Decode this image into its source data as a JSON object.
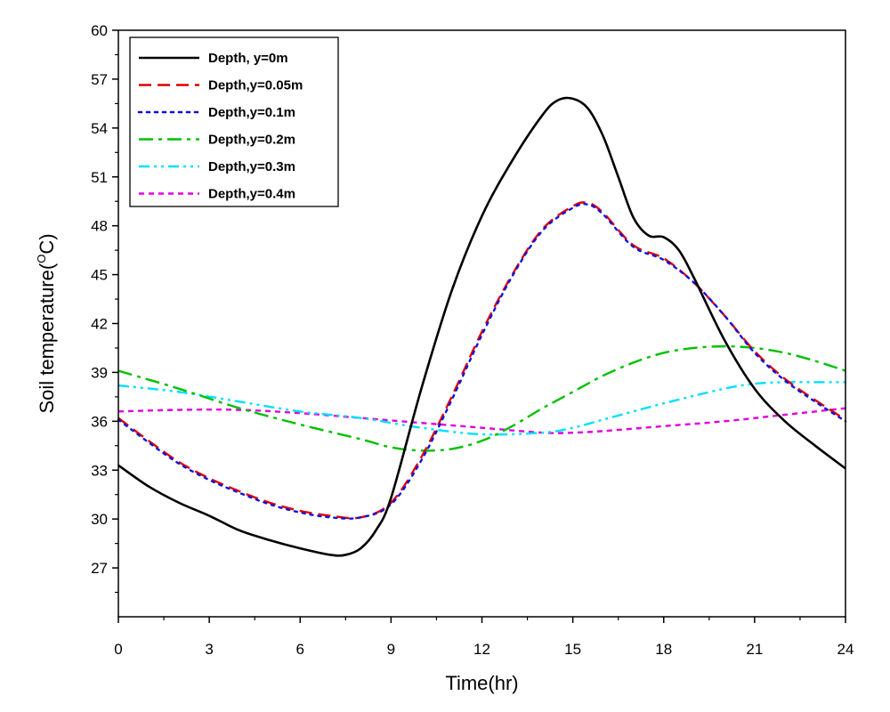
{
  "chart_data": {
    "type": "line",
    "xlabel": "Time(hr)",
    "ylabel_main": "Soil temperature(",
    "ylabel_sup": "O",
    "ylabel_end": "C)",
    "xlim": [
      0,
      24
    ],
    "ylim": [
      24,
      60
    ],
    "xticks": [
      0,
      3,
      6,
      9,
      12,
      15,
      18,
      21,
      24
    ],
    "yticks": [
      27,
      30,
      33,
      36,
      39,
      42,
      45,
      48,
      51,
      54,
      57,
      60
    ],
    "grid": false,
    "legend_position": "top-left",
    "series": [
      {
        "name": "Depth,  y=0m",
        "color": "#000000",
        "style": "solid",
        "x": [
          0,
          1,
          2,
          3,
          4,
          5,
          6,
          7,
          7.5,
          8,
          8.5,
          9,
          10,
          11,
          12,
          13,
          14,
          14.5,
          15,
          15.5,
          16,
          16.5,
          17,
          17.5,
          18,
          18.5,
          19,
          20,
          21,
          22,
          23,
          24
        ],
        "y": [
          33.3,
          32.0,
          31.0,
          30.2,
          29.3,
          28.7,
          28.2,
          27.8,
          27.8,
          28.2,
          29.3,
          31.3,
          38.0,
          44.0,
          48.6,
          52.0,
          54.8,
          55.7,
          55.8,
          55.2,
          53.5,
          51.0,
          48.5,
          47.4,
          47.3,
          46.5,
          44.8,
          41.0,
          38.0,
          36.0,
          34.5,
          33.1
        ]
      },
      {
        "name": "Depth,y=0.05m",
        "color": "#e00000",
        "style": "dashed",
        "x": [
          0,
          1,
          2,
          3,
          4,
          5,
          6,
          7,
          8,
          9,
          10,
          11,
          12,
          13,
          14,
          15,
          15.5,
          16,
          17,
          18,
          19,
          20,
          21,
          22,
          23,
          24
        ],
        "y": [
          36.2,
          34.8,
          33.5,
          32.5,
          31.7,
          31.0,
          30.5,
          30.2,
          30.1,
          31.0,
          33.8,
          37.5,
          41.5,
          45.0,
          47.8,
          49.2,
          49.4,
          48.8,
          46.8,
          46.0,
          44.5,
          42.5,
          40.3,
          38.6,
          37.3,
          36.1
        ]
      },
      {
        "name": "Depth,y=0.1m",
        "color": "#1010e0",
        "style": "dotted",
        "x": [
          0,
          1,
          2,
          3,
          4,
          5,
          6,
          7,
          8,
          9,
          10,
          11,
          12,
          13,
          14,
          15,
          15.5,
          16,
          17,
          18,
          19,
          20,
          21,
          22,
          23,
          24
        ],
        "y": [
          36.1,
          34.7,
          33.4,
          32.4,
          31.6,
          30.9,
          30.4,
          30.1,
          30.1,
          30.9,
          33.6,
          37.3,
          41.3,
          44.9,
          47.7,
          49.1,
          49.3,
          48.7,
          46.7,
          45.9,
          44.5,
          42.5,
          40.2,
          38.5,
          37.2,
          36.0
        ]
      },
      {
        "name": "Depth,y=0.2m",
        "color": "#00c000",
        "style": "dashdot",
        "x": [
          0,
          2,
          4,
          6,
          8,
          9,
          10,
          11,
          12,
          13,
          14,
          15,
          16,
          17,
          18,
          19,
          20,
          21,
          22,
          23,
          24
        ],
        "y": [
          39.1,
          38.0,
          36.8,
          35.8,
          34.9,
          34.4,
          34.2,
          34.3,
          34.8,
          35.7,
          36.8,
          37.8,
          38.8,
          39.6,
          40.2,
          40.5,
          40.6,
          40.5,
          40.2,
          39.7,
          39.1
        ]
      },
      {
        "name": "Depth,y=0.3m",
        "color": "#00e0ff",
        "style": "dashdotdot",
        "x": [
          0,
          2,
          4,
          6,
          8,
          10,
          12,
          14,
          15,
          16,
          18,
          20,
          21,
          22,
          23,
          24
        ],
        "y": [
          38.2,
          37.8,
          37.2,
          36.6,
          36.2,
          35.6,
          35.2,
          35.3,
          35.6,
          36.1,
          37.1,
          38.0,
          38.3,
          38.4,
          38.4,
          38.4
        ]
      },
      {
        "name": "Depth,y=0.4m",
        "color": "#e000e0",
        "style": "shortdash",
        "x": [
          0,
          2,
          4,
          6,
          8,
          10,
          12,
          14,
          15,
          16,
          18,
          20,
          22,
          24
        ],
        "y": [
          36.6,
          36.7,
          36.7,
          36.5,
          36.2,
          35.9,
          35.6,
          35.3,
          35.3,
          35.4,
          35.7,
          36.0,
          36.4,
          36.8
        ]
      }
    ]
  }
}
